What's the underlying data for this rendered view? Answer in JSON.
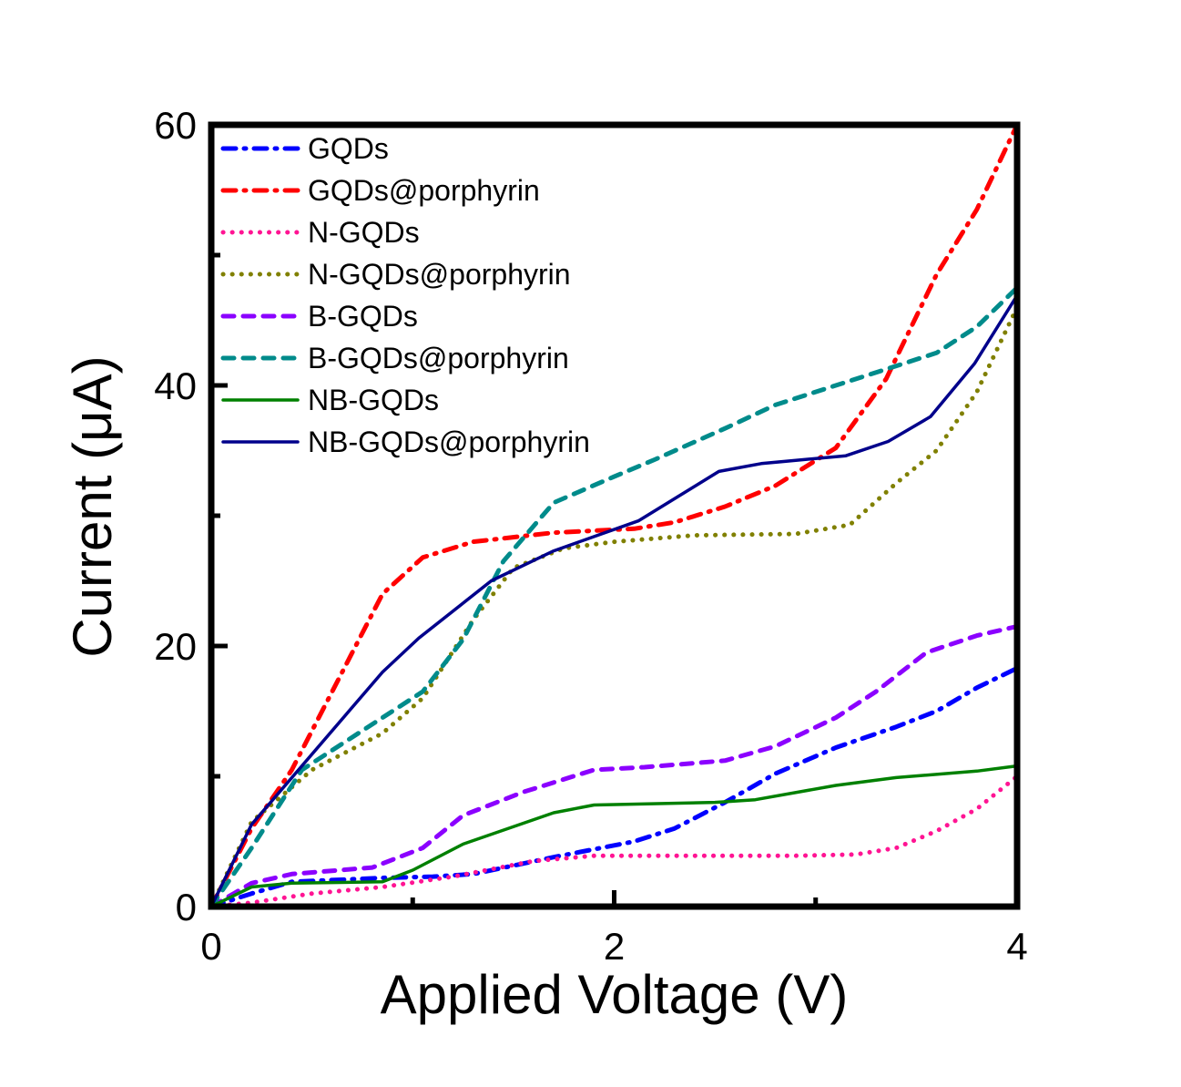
{
  "chart_data": {
    "type": "line",
    "title": "",
    "xlabel": "Applied Voltage (V)",
    "ylabel": "Current (μA)",
    "xlim": [
      0,
      4
    ],
    "ylim": [
      0,
      60
    ],
    "x_major_ticks": [
      0,
      2,
      4
    ],
    "x_minor_ticks": [
      1,
      3
    ],
    "y_major_ticks": [
      0,
      20,
      40,
      60
    ],
    "y_minor_ticks": [
      10,
      30,
      50
    ],
    "x_tick_labels": [
      "0",
      "2",
      "4"
    ],
    "y_tick_labels": [
      "0",
      "20",
      "40",
      "60"
    ],
    "grid": false,
    "legend_position": "top-left",
    "series": [
      {
        "name": "GQDs",
        "color": "#0000ff",
        "style": "dash-dot",
        "x": [
          0,
          0.2,
          0.4,
          0.85,
          1.1,
          1.3,
          1.7,
          2.1,
          2.3,
          2.55,
          2.8,
          3.1,
          3.4,
          3.6,
          3.8,
          4.0
        ],
        "y": [
          0,
          1.0,
          1.9,
          2.2,
          2.3,
          2.5,
          3.8,
          5.0,
          6.0,
          8.0,
          10.2,
          12.2,
          13.8,
          15.0,
          16.8,
          18.3
        ]
      },
      {
        "name": "GQDs@porphyrin",
        "color": "#ff0000",
        "style": "dash-dot",
        "x": [
          0,
          0.2,
          0.4,
          0.85,
          1.05,
          1.3,
          1.7,
          2.1,
          2.3,
          2.55,
          2.8,
          3.1,
          3.35,
          3.6,
          3.8,
          4.0
        ],
        "y": [
          0,
          6.0,
          10.5,
          24.0,
          26.8,
          28.0,
          28.7,
          29.0,
          29.5,
          30.7,
          32.3,
          35.2,
          40.5,
          48.5,
          53.5,
          60.0
        ]
      },
      {
        "name": "N-GQDs",
        "color": "#ff1493",
        "style": "dotted",
        "x": [
          0,
          0.2,
          0.5,
          0.85,
          1.2,
          1.6,
          1.9,
          2.5,
          2.9,
          3.2,
          3.4,
          3.6,
          3.8,
          4.0
        ],
        "y": [
          0,
          0.3,
          1.0,
          1.5,
          2.3,
          3.5,
          3.9,
          3.9,
          3.9,
          4.0,
          4.5,
          5.8,
          7.5,
          10.0
        ]
      },
      {
        "name": "N-GQDs@porphyrin",
        "color": "#808000",
        "style": "dotted",
        "x": [
          0,
          0.2,
          0.5,
          0.85,
          1.05,
          1.3,
          1.5,
          1.75,
          2.0,
          2.4,
          2.9,
          3.17,
          3.4,
          3.6,
          3.8,
          4.0
        ],
        "y": [
          0,
          6.5,
          10.5,
          13.3,
          16.0,
          22.0,
          26.0,
          27.5,
          28.0,
          28.5,
          28.6,
          29.3,
          32.5,
          35.0,
          39.5,
          46.0
        ]
      },
      {
        "name": "B-GQDs",
        "color": "#8b00ff",
        "style": "dashed",
        "x": [
          0,
          0.2,
          0.4,
          0.8,
          1.05,
          1.25,
          1.55,
          1.9,
          2.15,
          2.55,
          2.8,
          3.1,
          3.3,
          3.55,
          3.8,
          4.0
        ],
        "y": [
          0,
          1.8,
          2.5,
          3.0,
          4.5,
          7.0,
          8.8,
          10.5,
          10.7,
          11.2,
          12.3,
          14.5,
          16.5,
          19.5,
          20.8,
          21.5
        ]
      },
      {
        "name": "B-GQDs@porphyrin",
        "color": "#008b8b",
        "style": "dashed",
        "x": [
          0,
          0.2,
          0.45,
          0.85,
          1.05,
          1.25,
          1.45,
          1.7,
          2.0,
          2.2,
          2.55,
          2.8,
          3.1,
          3.4,
          3.6,
          3.8,
          4.0
        ],
        "y": [
          0,
          4.5,
          10.5,
          14.5,
          16.5,
          20.5,
          26.5,
          31.0,
          33.0,
          34.3,
          36.7,
          38.5,
          40.0,
          41.5,
          42.5,
          44.5,
          47.5
        ]
      },
      {
        "name": "NB-GQDs",
        "color": "#008000",
        "style": "solid",
        "x": [
          0,
          0.2,
          0.4,
          0.85,
          1.0,
          1.25,
          1.7,
          1.9,
          2.5,
          2.7,
          3.1,
          3.4,
          3.8,
          4.0
        ],
        "y": [
          0,
          1.5,
          1.8,
          1.9,
          2.8,
          4.8,
          7.2,
          7.8,
          8.0,
          8.2,
          9.3,
          9.9,
          10.4,
          10.8
        ]
      },
      {
        "name": "NB-GQDs@porphyrin",
        "color": "#00008b",
        "style": "solid",
        "x": [
          0,
          0.2,
          0.85,
          1.03,
          1.39,
          1.7,
          2.12,
          2.52,
          2.73,
          3.15,
          3.36,
          3.57,
          3.79,
          4.0
        ],
        "y": [
          0,
          6.3,
          18.0,
          20.6,
          25.0,
          27.3,
          29.6,
          33.4,
          34.0,
          34.6,
          35.7,
          37.6,
          41.7,
          46.9
        ]
      }
    ]
  }
}
